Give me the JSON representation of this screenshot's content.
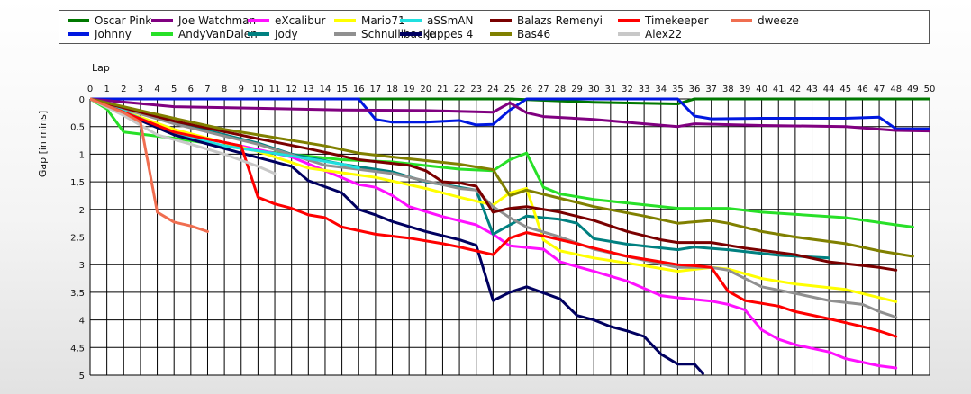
{
  "chart_data": {
    "type": "line",
    "xlabel": "Lap",
    "ylabel": "Gap [in mins]",
    "x_ticks": [
      0,
      1,
      2,
      3,
      4,
      5,
      6,
      7,
      8,
      9,
      10,
      11,
      12,
      13,
      14,
      15,
      16,
      17,
      18,
      19,
      20,
      21,
      22,
      23,
      24,
      25,
      26,
      27,
      28,
      29,
      30,
      31,
      32,
      33,
      34,
      35,
      36,
      37,
      38,
      39,
      40,
      41,
      42,
      43,
      44,
      45,
      46,
      47,
      48,
      49,
      50
    ],
    "y_ticks": [
      "0",
      "0,5",
      "1",
      "1,5",
      "2",
      "2,5",
      "3",
      "3,5",
      "4",
      "4,5",
      "5"
    ],
    "xlim": [
      0,
      50
    ],
    "ylim": [
      0,
      5
    ],
    "y_inverted": true,
    "grid": true,
    "legend_position": "top",
    "series": [
      {
        "name": "Oscar Pink",
        "color": "#007800",
        "points": [
          [
            0,
            0
          ],
          [
            10,
            0
          ],
          [
            20,
            0
          ],
          [
            25,
            0
          ],
          [
            30,
            0.06
          ],
          [
            35,
            0.09
          ],
          [
            36,
            0
          ],
          [
            50,
            0
          ]
        ]
      },
      {
        "name": "Johnny",
        "color": "#0018e0",
        "points": [
          [
            0,
            0
          ],
          [
            16,
            0
          ],
          [
            17,
            0.37
          ],
          [
            18,
            0.42
          ],
          [
            20,
            0.42
          ],
          [
            22,
            0.39
          ],
          [
            23,
            0.47
          ],
          [
            24,
            0.46
          ],
          [
            25,
            0.2
          ],
          [
            26,
            0
          ],
          [
            35,
            0
          ],
          [
            36,
            0.31
          ],
          [
            37,
            0.36
          ],
          [
            40,
            0.35
          ],
          [
            45,
            0.35
          ],
          [
            47,
            0.33
          ],
          [
            48,
            0.54
          ],
          [
            50,
            0.54
          ]
        ]
      },
      {
        "name": "Joe Watchman",
        "color": "#800080",
        "points": [
          [
            0,
            0
          ],
          [
            5,
            0.14
          ],
          [
            10,
            0.17
          ],
          [
            15,
            0.2
          ],
          [
            20,
            0.21
          ],
          [
            24,
            0.24
          ],
          [
            25,
            0.07
          ],
          [
            26,
            0.25
          ],
          [
            27,
            0.32
          ],
          [
            30,
            0.37
          ],
          [
            33,
            0.45
          ],
          [
            35,
            0.5
          ],
          [
            36,
            0.45
          ],
          [
            40,
            0.48
          ],
          [
            45,
            0.5
          ],
          [
            48,
            0.57
          ],
          [
            50,
            0.58
          ]
        ]
      },
      {
        "name": "AndyVanDalen",
        "color": "#28e028",
        "points": [
          [
            0,
            0
          ],
          [
            1,
            0.18
          ],
          [
            2,
            0.6
          ],
          [
            5,
            0.71
          ],
          [
            10,
            0.94
          ],
          [
            15,
            1.1
          ],
          [
            18,
            1.14
          ],
          [
            22,
            1.27
          ],
          [
            24,
            1.3
          ],
          [
            25,
            1.1
          ],
          [
            26,
            0.98
          ],
          [
            27,
            1.6
          ],
          [
            28,
            1.72
          ],
          [
            30,
            1.82
          ],
          [
            35,
            1.98
          ],
          [
            38,
            1.98
          ],
          [
            40,
            2.05
          ],
          [
            45,
            2.15
          ],
          [
            48,
            2.28
          ],
          [
            49,
            2.32
          ]
        ]
      },
      {
        "name": "eXcalibur",
        "color": "#ff10ff",
        "points": [
          [
            0,
            0
          ],
          [
            5,
            0.6
          ],
          [
            9,
            0.85
          ],
          [
            12,
            1.05
          ],
          [
            14,
            1.3
          ],
          [
            16,
            1.55
          ],
          [
            17,
            1.6
          ],
          [
            18,
            1.75
          ],
          [
            19,
            1.95
          ],
          [
            21,
            2.13
          ],
          [
            23,
            2.28
          ],
          [
            24,
            2.45
          ],
          [
            25,
            2.66
          ],
          [
            27,
            2.72
          ],
          [
            28,
            2.95
          ],
          [
            30,
            3.12
          ],
          [
            32,
            3.3
          ],
          [
            34,
            3.56
          ],
          [
            35,
            3.6
          ],
          [
            37,
            3.66
          ],
          [
            38,
            3.72
          ],
          [
            39,
            3.82
          ],
          [
            40,
            4.18
          ],
          [
            41,
            4.35
          ],
          [
            42,
            4.45
          ],
          [
            44,
            4.58
          ],
          [
            45,
            4.7
          ],
          [
            47,
            4.83
          ],
          [
            48,
            4.87
          ]
        ]
      },
      {
        "name": "Jody",
        "color": "#008080",
        "points": [
          [
            0,
            0
          ],
          [
            5,
            0.42
          ],
          [
            10,
            0.8
          ],
          [
            12,
            1.0
          ],
          [
            15,
            1.18
          ],
          [
            18,
            1.32
          ],
          [
            20,
            1.5
          ],
          [
            22,
            1.6
          ],
          [
            23,
            1.65
          ],
          [
            24,
            2.45
          ],
          [
            25,
            2.28
          ],
          [
            26,
            2.12
          ],
          [
            28,
            2.18
          ],
          [
            29,
            2.25
          ],
          [
            30,
            2.53
          ],
          [
            32,
            2.63
          ],
          [
            35,
            2.73
          ],
          [
            36,
            2.68
          ],
          [
            38,
            2.73
          ],
          [
            41,
            2.83
          ],
          [
            44,
            2.88
          ]
        ]
      },
      {
        "name": "Mario71",
        "color": "#ffff00",
        "points": [
          [
            0,
            0
          ],
          [
            5,
            0.55
          ],
          [
            10,
            0.95
          ],
          [
            13,
            1.25
          ],
          [
            17,
            1.42
          ],
          [
            20,
            1.62
          ],
          [
            22,
            1.78
          ],
          [
            24,
            1.92
          ],
          [
            25,
            1.7
          ],
          [
            26,
            1.62
          ],
          [
            27,
            2.55
          ],
          [
            28,
            2.75
          ],
          [
            30,
            2.88
          ],
          [
            33,
            3.02
          ],
          [
            35,
            3.12
          ],
          [
            37,
            3.05
          ],
          [
            38,
            3.08
          ],
          [
            40,
            3.25
          ],
          [
            42,
            3.35
          ],
          [
            45,
            3.45
          ],
          [
            48,
            3.67
          ]
        ]
      },
      {
        "name": "Schnullibacke",
        "color": "#909090",
        "points": [
          [
            0,
            0
          ],
          [
            5,
            0.45
          ],
          [
            10,
            0.82
          ],
          [
            14,
            1.2
          ],
          [
            18,
            1.35
          ],
          [
            22,
            1.62
          ],
          [
            23,
            1.65
          ],
          [
            24,
            1.95
          ],
          [
            25,
            2.15
          ],
          [
            26,
            2.32
          ],
          [
            28,
            2.5
          ],
          [
            30,
            2.72
          ],
          [
            33,
            2.92
          ],
          [
            35,
            3.05
          ],
          [
            37,
            3.05
          ],
          [
            38,
            3.1
          ],
          [
            40,
            3.4
          ],
          [
            42,
            3.52
          ],
          [
            44,
            3.65
          ],
          [
            46,
            3.72
          ],
          [
            47,
            3.85
          ],
          [
            48,
            3.95
          ]
        ]
      },
      {
        "name": "aSSmAN",
        "color": "#20e0e0",
        "points": [
          [
            0,
            0
          ],
          [
            2,
            0.22
          ],
          [
            5,
            0.62
          ],
          [
            8,
            0.85
          ],
          [
            10,
            0.94
          ],
          [
            13,
            1.08
          ],
          [
            15,
            1.18
          ],
          [
            16,
            1.25
          ]
        ]
      },
      {
        "name": "juppes 4",
        "color": "#000060",
        "points": [
          [
            0,
            0
          ],
          [
            5,
            0.65
          ],
          [
            9,
            0.98
          ],
          [
            12,
            1.22
          ],
          [
            13,
            1.48
          ],
          [
            15,
            1.7
          ],
          [
            16,
            2.0
          ],
          [
            17,
            2.1
          ],
          [
            18,
            2.22
          ],
          [
            20,
            2.4
          ],
          [
            22,
            2.55
          ],
          [
            23,
            2.65
          ],
          [
            24,
            3.65
          ],
          [
            25,
            3.5
          ],
          [
            26,
            3.4
          ],
          [
            28,
            3.62
          ],
          [
            29,
            3.92
          ],
          [
            30,
            4.0
          ],
          [
            31,
            4.12
          ],
          [
            32,
            4.2
          ],
          [
            33,
            4.3
          ],
          [
            34,
            4.62
          ],
          [
            35,
            4.8
          ],
          [
            36,
            4.8
          ],
          [
            36.5,
            4.97
          ]
        ]
      },
      {
        "name": "Balazs Remenyi",
        "color": "#7a0000",
        "points": [
          [
            0,
            0
          ],
          [
            5,
            0.4
          ],
          [
            10,
            0.72
          ],
          [
            13,
            0.9
          ],
          [
            16,
            1.1
          ],
          [
            19,
            1.2
          ],
          [
            20,
            1.3
          ],
          [
            21,
            1.5
          ],
          [
            22,
            1.52
          ],
          [
            23,
            1.58
          ],
          [
            24,
            2.05
          ],
          [
            25,
            1.98
          ],
          [
            26,
            1.95
          ],
          [
            28,
            2.05
          ],
          [
            30,
            2.2
          ],
          [
            32,
            2.4
          ],
          [
            34,
            2.55
          ],
          [
            35,
            2.6
          ],
          [
            37,
            2.6
          ],
          [
            39,
            2.7
          ],
          [
            42,
            2.82
          ],
          [
            44,
            2.95
          ],
          [
            47,
            3.05
          ],
          [
            48,
            3.1
          ]
        ]
      },
      {
        "name": "Bas46",
        "color": "#808000",
        "points": [
          [
            0,
            0
          ],
          [
            5,
            0.35
          ],
          [
            8,
            0.55
          ],
          [
            10,
            0.65
          ],
          [
            14,
            0.85
          ],
          [
            16,
            0.98
          ],
          [
            18,
            1.05
          ],
          [
            22,
            1.18
          ],
          [
            24,
            1.28
          ],
          [
            25,
            1.75
          ],
          [
            26,
            1.65
          ],
          [
            28,
            1.8
          ],
          [
            30,
            1.95
          ],
          [
            33,
            2.12
          ],
          [
            35,
            2.25
          ],
          [
            37,
            2.2
          ],
          [
            38,
            2.25
          ],
          [
            40,
            2.4
          ],
          [
            42,
            2.5
          ],
          [
            45,
            2.62
          ],
          [
            47,
            2.75
          ],
          [
            49,
            2.85
          ]
        ]
      },
      {
        "name": "Timekeeper",
        "color": "#ff0000",
        "points": [
          [
            0,
            0
          ],
          [
            5,
            0.6
          ],
          [
            9,
            0.85
          ],
          [
            10,
            1.78
          ],
          [
            11,
            1.9
          ],
          [
            12,
            1.98
          ],
          [
            13,
            2.1
          ],
          [
            14,
            2.15
          ],
          [
            15,
            2.32
          ],
          [
            17,
            2.45
          ],
          [
            19,
            2.52
          ],
          [
            21,
            2.62
          ],
          [
            22,
            2.68
          ],
          [
            24,
            2.82
          ],
          [
            25,
            2.52
          ],
          [
            26,
            2.42
          ],
          [
            27,
            2.48
          ],
          [
            29,
            2.62
          ],
          [
            30,
            2.7
          ],
          [
            32,
            2.85
          ],
          [
            34,
            2.95
          ],
          [
            35,
            3.0
          ],
          [
            36,
            3.02
          ],
          [
            37,
            3.05
          ],
          [
            38,
            3.48
          ],
          [
            39,
            3.65
          ],
          [
            41,
            3.75
          ],
          [
            42,
            3.85
          ],
          [
            44,
            3.98
          ],
          [
            45,
            4.05
          ],
          [
            46,
            4.12
          ],
          [
            47,
            4.2
          ],
          [
            48,
            4.3
          ]
        ]
      },
      {
        "name": "Alex22",
        "color": "#c8c8c8",
        "points": [
          [
            0,
            0
          ],
          [
            2,
            0.3
          ],
          [
            4,
            0.65
          ],
          [
            6,
            0.82
          ],
          [
            8,
            1.0
          ],
          [
            10,
            1.22
          ],
          [
            11,
            1.35
          ]
        ]
      },
      {
        "name": "dweeze",
        "color": "#f06e50",
        "points": [
          [
            0,
            0
          ],
          [
            2,
            0.25
          ],
          [
            3,
            0.42
          ],
          [
            4,
            2.05
          ],
          [
            5,
            2.23
          ],
          [
            6,
            2.3
          ],
          [
            7,
            2.4
          ]
        ]
      }
    ]
  }
}
